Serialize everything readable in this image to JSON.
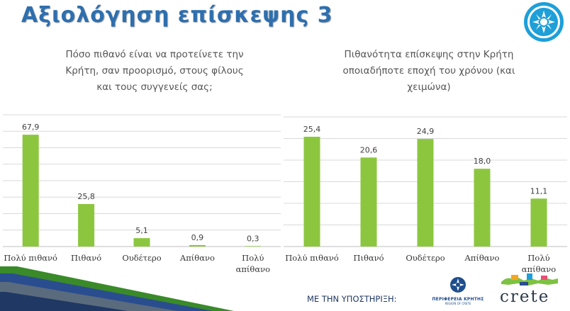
{
  "slide": {
    "title": "Αξιολόγηση επίσκεψης 3",
    "support_label": "ΜΕ ΤΗΝ ΥΠΟΣΤΗΡΙΞΗ:",
    "region_logo_text": "ΠΕΡΙΦΕΡΕΙΑ ΚΡΗΤΗΣ",
    "region_logo_sub": "REGION OF CRETE",
    "crete_logo_word": "crete"
  },
  "colors": {
    "bar": "#8cc63f",
    "title": "#2e6fae",
    "gridline": "#d9d9d9",
    "stripe_green": "#3a8a2a",
    "stripe_blue": "#2a4d8f"
  },
  "chart_data": [
    {
      "type": "bar",
      "title": "Πόσο πιθανό είναι να προτείνετε την Κρήτη, σαν προορισμό, στους φίλους και τους συγγενείς σας;",
      "title_lines": [
        "Πόσο πιθανό είναι να προτείνετε την",
        "Κρήτη, σαν προορισμό, στους φίλους",
        "και τους συγγενείς σας;"
      ],
      "categories": [
        "Πολύ πιθανό",
        "Πιθανό",
        "Ουδέτερο",
        "Απίθανο",
        "Πολύ απίθανο"
      ],
      "category_lines": [
        [
          "Πολύ πιθανό"
        ],
        [
          "Πιθανό"
        ],
        [
          "Ουδέτερο"
        ],
        [
          "Απίθανο"
        ],
        [
          "Πολύ",
          "απίθανο"
        ]
      ],
      "values": [
        67.9,
        25.8,
        5.1,
        0.9,
        0.3
      ],
      "value_labels": [
        "67,9",
        "25,8",
        "5,1",
        "0,9",
        "0,3"
      ],
      "ylim": [
        0,
        80
      ],
      "grid": true,
      "xlabel": "",
      "ylabel": ""
    },
    {
      "type": "bar",
      "title": "Πιθανότητα επίσκεψης στην Κρήτη οποιαδήποτε εποχή του χρόνου (και χειμώνα)",
      "title_lines": [
        "Πιθανότητα επίσκεψης στην Κρήτη",
        "οποιαδήποτε εποχή του χρόνου (και",
        "χειμώνα)"
      ],
      "categories": [
        "Πολύ πιθανό",
        "Πιθανό",
        "Ουδέτερο",
        "Απίθανο",
        "Πολύ απίθανο"
      ],
      "category_lines": [
        [
          "Πολύ πιθανό"
        ],
        [
          "Πιθανό"
        ],
        [
          "Ουδέτερο"
        ],
        [
          "Απίθανο"
        ],
        [
          "Πολύ",
          "απίθανο"
        ]
      ],
      "values": [
        25.4,
        20.6,
        24.9,
        18.0,
        11.1
      ],
      "value_labels": [
        "25,4",
        "20,6",
        "24,9",
        "18,0",
        "11,1"
      ],
      "ylim": [
        0,
        30
      ],
      "grid": true,
      "xlabel": "",
      "ylabel": ""
    }
  ]
}
